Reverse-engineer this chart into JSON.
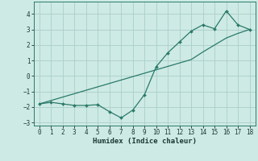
{
  "x": [
    0,
    1,
    2,
    3,
    4,
    5,
    6,
    7,
    8,
    9,
    10,
    11,
    12,
    13,
    14,
    15,
    16,
    17,
    18
  ],
  "y_curve": [
    -1.8,
    -1.7,
    -1.8,
    -1.9,
    -1.9,
    -1.85,
    -2.3,
    -2.7,
    -2.2,
    -1.2,
    0.6,
    1.5,
    2.2,
    2.9,
    3.3,
    3.05,
    4.2,
    3.3,
    3.0
  ],
  "y_line": [
    -1.8,
    -1.58,
    -1.36,
    -1.14,
    -0.92,
    -0.7,
    -0.48,
    -0.26,
    -0.04,
    0.18,
    0.4,
    0.62,
    0.84,
    1.06,
    1.55,
    2.0,
    2.45,
    2.75,
    3.0
  ],
  "xlabel": "Humidex (Indice chaleur)",
  "xlim": [
    -0.5,
    18.5
  ],
  "ylim": [
    -3.2,
    4.8
  ],
  "yticks": [
    -3,
    -2,
    -1,
    0,
    1,
    2,
    3,
    4
  ],
  "xticks": [
    0,
    1,
    2,
    3,
    4,
    5,
    6,
    7,
    8,
    9,
    10,
    11,
    12,
    13,
    14,
    15,
    16,
    17,
    18
  ],
  "line_color": "#2a7a6a",
  "bg_color": "#ceeae5",
  "grid_color": "#aacfc8"
}
